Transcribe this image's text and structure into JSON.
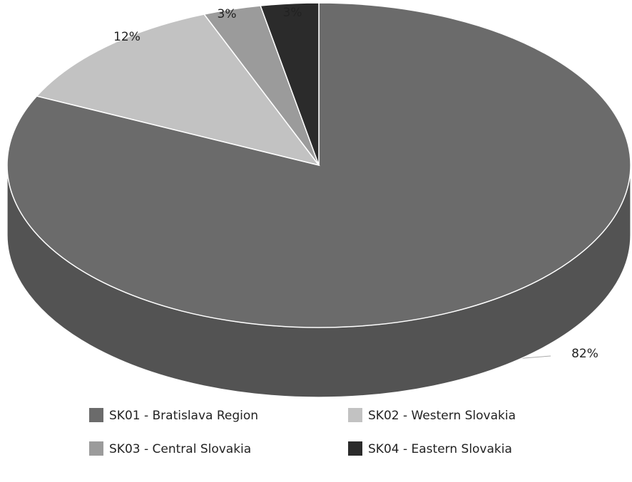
{
  "chart_data": {
    "type": "pie3d",
    "categories": [
      "SK01 - Bratislava Region",
      "SK02 - Western Slovakia",
      "SK03 - Central Slovakia",
      "SK04 - Eastern Slovakia"
    ],
    "values": [
      82,
      12,
      3,
      3
    ],
    "value_labels": [
      "82%",
      "12%",
      "3%",
      "3%"
    ],
    "colors": [
      "#6b6b6b",
      "#c2c2c2",
      "#9b9b9b",
      "#2b2b2b"
    ],
    "legend": "bottom"
  }
}
